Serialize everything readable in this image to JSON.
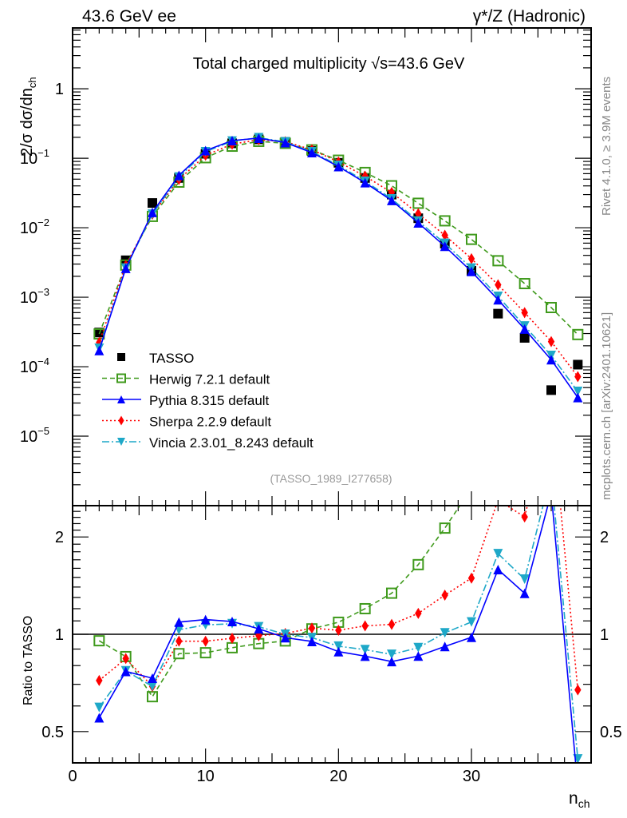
{
  "header": {
    "left": "43.6 GeV ee",
    "right": "γ*/Z (Hadronic)"
  },
  "side_labels": {
    "top": "Rivet 4.1.0, ≥ 3.9M events",
    "bottom": "mcplots.cern.ch [arXiv:2401.10621]"
  },
  "analysis_id": "(TASSO_1989_I277658)",
  "chart_data": {
    "type": "line",
    "title": "Total charged multiplicity √s=43.6 GeV",
    "ylabel": "2/σ   dσ/dn",
    "ylabel_sub": "ch",
    "xlabel": "n",
    "xlabel_sub": "ch",
    "xlim": [
      0,
      39
    ],
    "ylim": [
      1e-06,
      7.5
    ],
    "yscale": "log",
    "x_ticks": [
      "0",
      "10",
      "20",
      "30"
    ],
    "x_tick_values": [
      0,
      10,
      20,
      30
    ],
    "y_ticks": [
      "1",
      "10",
      "10",
      "10",
      "10",
      "10"
    ],
    "y_tick_exponents": [
      "",
      "−1",
      "−2",
      "−3",
      "−4",
      "−5"
    ],
    "y_tick_values": [
      1,
      0.1,
      0.01,
      0.001,
      0.0001,
      1e-05
    ],
    "legend_position": "lower-left",
    "x": [
      2,
      4,
      6,
      8,
      10,
      12,
      14,
      16,
      18,
      20,
      22,
      24,
      26,
      28,
      30,
      32,
      34,
      36,
      38
    ],
    "series": [
      {
        "name": "TASSO",
        "color": "#000000",
        "marker": "square",
        "line": "none",
        "values": [
          0.00031,
          0.0034,
          0.0227,
          0.052,
          0.116,
          0.164,
          0.187,
          0.172,
          0.127,
          0.086,
          0.052,
          0.03,
          0.0137,
          0.0059,
          0.0024,
          0.00058,
          0.00026,
          4.6e-05,
          0.000107
        ]
      },
      {
        "name": "Herwig 7.2.1 default",
        "color": "#3f9a1c",
        "marker": "open-square",
        "line": "dashed",
        "values": [
          0.000296,
          0.0029,
          0.01455,
          0.0453,
          0.1017,
          0.149,
          0.175,
          0.164,
          0.132,
          0.0937,
          0.0624,
          0.0402,
          0.0225,
          0.01257,
          0.0068,
          0.00335,
          0.00157,
          0.00071,
          0.00029
        ]
      },
      {
        "name": "Pythia 8.315 default",
        "color": "#0000ff",
        "marker": "triangle-up",
        "line": "solid",
        "values": [
          0.000171,
          0.00261,
          0.0166,
          0.0567,
          0.1288,
          0.1796,
          0.1945,
          0.1679,
          0.1207,
          0.076,
          0.0445,
          0.0247,
          0.01173,
          0.00541,
          0.00235,
          0.00092,
          0.000348,
          0.000126,
          3.6e-05
        ]
      },
      {
        "name": "Sherpa 2.2.9 default",
        "color": "#ff0000",
        "marker": "diamond",
        "line": "dotted",
        "values": [
          0.000223,
          0.00286,
          0.01566,
          0.0495,
          0.1104,
          0.1594,
          0.1851,
          0.173,
          0.1327,
          0.0885,
          0.0552,
          0.0322,
          0.0159,
          0.0078,
          0.00358,
          0.00151,
          0.0006,
          0.00023,
          7.2e-05
        ]
      },
      {
        "name": "Vincia 2.3.01_8.243 default",
        "color": "#1ea8c8",
        "marker": "triangle-down",
        "line": "dashdot",
        "values": [
          0.000184,
          0.00262,
          0.01566,
          0.0537,
          0.124,
          0.1768,
          0.1973,
          0.172,
          0.124,
          0.079,
          0.0466,
          0.026,
          0.01245,
          0.00596,
          0.00262,
          0.00103,
          0.000385,
          0.000145,
          4.4e-05
        ]
      }
    ],
    "ratio": {
      "ylabel": "Ratio to TASSO",
      "ylim": [
        0.4,
        2.5
      ],
      "yscale": "log",
      "y_ticks": [
        "0.5",
        "1",
        "2"
      ],
      "y_tick_values": [
        0.5,
        1,
        2
      ],
      "reference": "TASSO"
    }
  }
}
